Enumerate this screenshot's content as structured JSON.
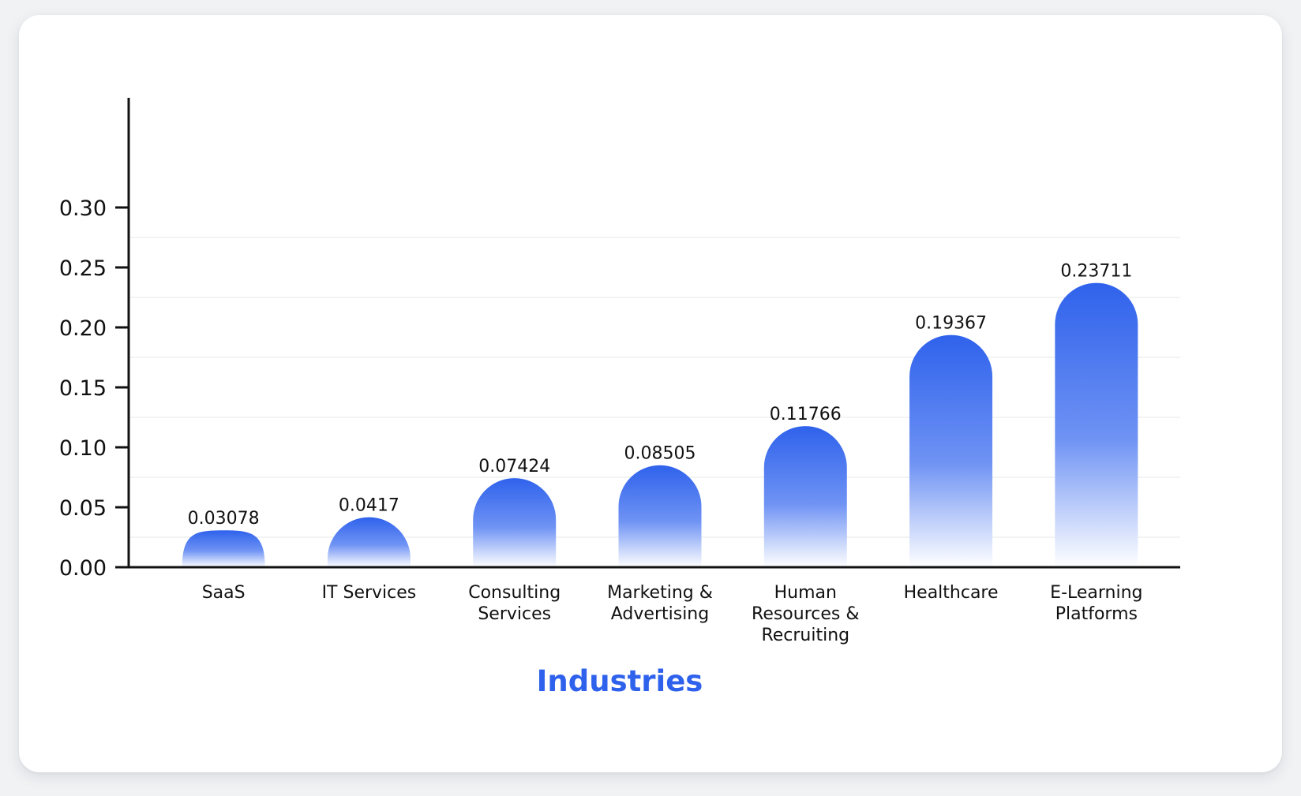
{
  "chart_data": {
    "type": "bar",
    "title": "",
    "xlabel": "Industries",
    "ylabel": "",
    "ylim": [
      0,
      0.39
    ],
    "yticks": [
      "0.00",
      "0.05",
      "0.10",
      "0.15",
      "0.20",
      "0.25",
      "0.30"
    ],
    "categories": [
      [
        "SaaS"
      ],
      [
        "IT Services"
      ],
      [
        "Consulting",
        "Services"
      ],
      [
        "Marketing &",
        "Advertising"
      ],
      [
        "Human",
        "Resources &",
        "Recruiting"
      ],
      [
        "Healthcare"
      ],
      [
        "E-Learning",
        "Platforms"
      ]
    ],
    "values": [
      0.03078,
      0.0417,
      0.07424,
      0.08505,
      0.11766,
      0.19367,
      0.23711
    ],
    "value_labels": [
      "0.03078",
      "0.0417",
      "0.07424",
      "0.08505",
      "0.11766",
      "0.19367",
      "0.23711"
    ],
    "grid": true,
    "legend": "none",
    "colors": {
      "bar_top": "#2f62ec",
      "bar_mid": "#6f93f4",
      "bar_bottom": "#ffffff",
      "xlabel": "#2f62ec",
      "axis": "#111111",
      "grid": "#e6e7ea"
    }
  }
}
